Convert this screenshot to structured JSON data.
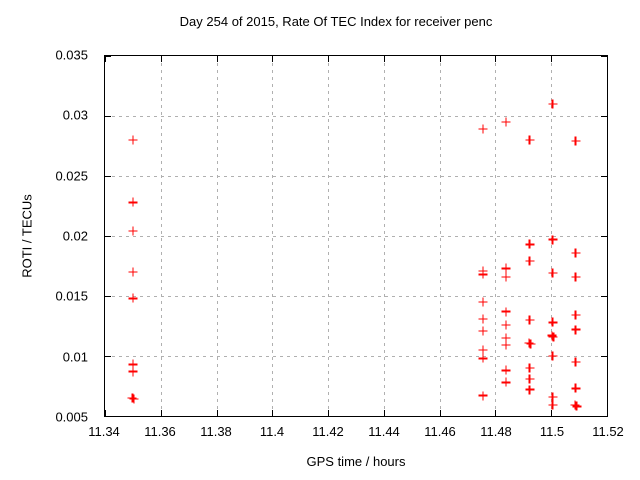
{
  "chart_data": {
    "type": "scatter",
    "title": "Day 254 of 2015, Rate Of TEC Index for receiver penc",
    "xlabel": "GPS time / hours",
    "ylabel": "ROTI / TECUs",
    "xlim": [
      11.34,
      11.52
    ],
    "ylim": [
      0.005,
      0.035
    ],
    "grid": true,
    "legend": "none",
    "marker": "plus",
    "marker_color": "#ff0000",
    "grid_color": "#b0b0b0",
    "axis_color": "#000000",
    "background_color": "#ffffff",
    "xticks": [
      {
        "v": 11.34,
        "label": "11.34"
      },
      {
        "v": 11.36,
        "label": "11.36"
      },
      {
        "v": 11.38,
        "label": "11.38"
      },
      {
        "v": 11.4,
        "label": "11.4"
      },
      {
        "v": 11.42,
        "label": "11.42"
      },
      {
        "v": 11.44,
        "label": "11.44"
      },
      {
        "v": 11.46,
        "label": "11.46"
      },
      {
        "v": 11.48,
        "label": "11.48"
      },
      {
        "v": 11.5,
        "label": "11.5"
      },
      {
        "v": 11.52,
        "label": "11.52"
      }
    ],
    "yticks": [
      {
        "v": 0.005,
        "label": "0.005"
      },
      {
        "v": 0.01,
        "label": "0.01"
      },
      {
        "v": 0.015,
        "label": "0.015"
      },
      {
        "v": 0.02,
        "label": "0.02"
      },
      {
        "v": 0.025,
        "label": "0.025"
      },
      {
        "v": 0.03,
        "label": "0.03"
      },
      {
        "v": 0.035,
        "label": "0.035"
      }
    ],
    "series": [
      {
        "name": "ROTI",
        "points": [
          [
            11.35,
            0.028
          ],
          [
            11.35,
            0.0228
          ],
          [
            11.35,
            0.0204
          ],
          [
            11.35,
            0.017
          ],
          [
            11.35,
            0.0148
          ],
          [
            11.35,
            0.0093
          ],
          [
            11.35,
            0.0087
          ],
          [
            11.3498,
            0.0065
          ],
          [
            11.3504,
            0.0064
          ],
          [
            11.4755,
            0.0289
          ],
          [
            11.4755,
            0.0171
          ],
          [
            11.4755,
            0.0168
          ],
          [
            11.4755,
            0.0145
          ],
          [
            11.4755,
            0.0131
          ],
          [
            11.4755,
            0.0121
          ],
          [
            11.4755,
            0.0105
          ],
          [
            11.4755,
            0.0098
          ],
          [
            11.4755,
            0.0067
          ],
          [
            11.4838,
            0.0295
          ],
          [
            11.4838,
            0.0173
          ],
          [
            11.4838,
            0.0166
          ],
          [
            11.4838,
            0.0137
          ],
          [
            11.4838,
            0.0126
          ],
          [
            11.4838,
            0.0115
          ],
          [
            11.4838,
            0.0109
          ],
          [
            11.4838,
            0.0088
          ],
          [
            11.4838,
            0.0078
          ],
          [
            11.4923,
            0.028
          ],
          [
            11.4923,
            0.0193
          ],
          [
            11.4923,
            0.0179
          ],
          [
            11.4923,
            0.013
          ],
          [
            11.4921,
            0.0111
          ],
          [
            11.4926,
            0.011
          ],
          [
            11.4923,
            0.009
          ],
          [
            11.4923,
            0.0081
          ],
          [
            11.4923,
            0.0072
          ],
          [
            11.5005,
            0.031
          ],
          [
            11.5005,
            0.0197
          ],
          [
            11.5005,
            0.0169
          ],
          [
            11.5005,
            0.0128
          ],
          [
            11.5003,
            0.0117
          ],
          [
            11.5008,
            0.0116
          ],
          [
            11.5005,
            0.01
          ],
          [
            11.5005,
            0.0066
          ],
          [
            11.5005,
            0.0059
          ],
          [
            11.5088,
            0.0279
          ],
          [
            11.5088,
            0.0186
          ],
          [
            11.5088,
            0.0166
          ],
          [
            11.5088,
            0.0134
          ],
          [
            11.5088,
            0.0122
          ],
          [
            11.5088,
            0.0095
          ],
          [
            11.5088,
            0.0073
          ],
          [
            11.5085,
            0.0059
          ],
          [
            11.5091,
            0.0058
          ]
        ]
      }
    ]
  }
}
